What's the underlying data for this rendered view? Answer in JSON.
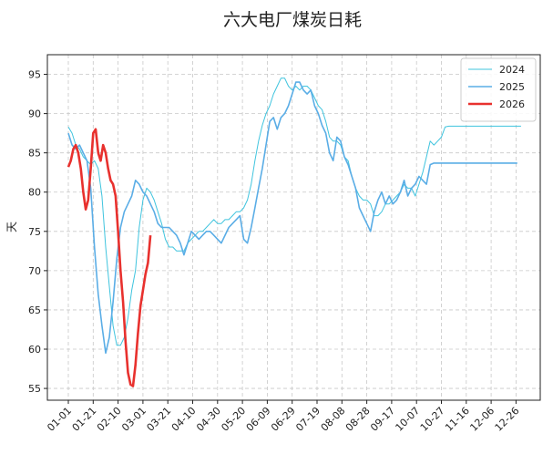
{
  "chart_data": {
    "type": "line",
    "title": "六大电厂煤炭日耗",
    "xlabel": "",
    "ylabel": "天",
    "x_ticks": [
      "01-01",
      "01-21",
      "02-10",
      "03-01",
      "03-21",
      "04-10",
      "04-30",
      "05-20",
      "06-09",
      "06-29",
      "07-19",
      "08-08",
      "08-28",
      "09-17",
      "10-07",
      "10-27",
      "11-16",
      "12-06",
      "12-26"
    ],
    "ylim": [
      53.5,
      97.5
    ],
    "y_ticks": [
      55,
      60,
      65,
      70,
      75,
      80,
      85,
      90,
      95
    ],
    "grid": true,
    "legend_position": "top-right",
    "series": [
      {
        "name": "2024",
        "color": "#3fc4de",
        "x": [
          0,
          3,
          6,
          9,
          12,
          15,
          18,
          21,
          24,
          27,
          30,
          33,
          36,
          39,
          42,
          45,
          48,
          51,
          54,
          57,
          60,
          63,
          66,
          69,
          72,
          75,
          78,
          81,
          84,
          87,
          90,
          93,
          96,
          99,
          102,
          105,
          108,
          111,
          114,
          117,
          120,
          123,
          126,
          129,
          132,
          135,
          138,
          141,
          144,
          147,
          150,
          153,
          156,
          159,
          162,
          165,
          168,
          171,
          174,
          177,
          180,
          183,
          186,
          189,
          192,
          195,
          198,
          201,
          204,
          207,
          210,
          213,
          216,
          219,
          222,
          225,
          228,
          231,
          234,
          237,
          240,
          243,
          246,
          249,
          252,
          255,
          258,
          261,
          264,
          267,
          270,
          273,
          276,
          279,
          282,
          285,
          288,
          291,
          294,
          297,
          300,
          303,
          306,
          309,
          312,
          315,
          318,
          321,
          324,
          327,
          330,
          333,
          336,
          339,
          342,
          345,
          348,
          351,
          354,
          357,
          360,
          364
        ],
        "values": [
          88.3,
          87.5,
          86.0,
          85.5,
          84.5,
          84.0,
          83.5,
          84.0,
          83.0,
          79.5,
          73.0,
          68.0,
          63.0,
          60.5,
          60.5,
          61.5,
          64.0,
          67.5,
          70.0,
          75.5,
          79.0,
          80.5,
          80.0,
          79.0,
          77.5,
          76.0,
          74.0,
          73.0,
          73.0,
          72.5,
          72.5,
          72.5,
          73.5,
          74.0,
          74.5,
          75.0,
          75.0,
          75.5,
          76.0,
          76.5,
          76.0,
          76.0,
          76.5,
          76.5,
          77.0,
          77.5,
          77.5,
          78.0,
          79.0,
          81.0,
          84.0,
          86.5,
          88.5,
          90.0,
          91.0,
          92.5,
          93.5,
          94.5,
          94.5,
          93.5,
          93.0,
          93.5,
          93.0,
          93.5,
          93.5,
          93.0,
          92.0,
          91.0,
          90.5,
          89.0,
          87.0,
          86.5,
          86.5,
          86.0,
          84.5,
          84.0,
          82.0,
          80.5,
          79.5,
          79.0,
          79.0,
          78.5,
          77.0,
          77.0,
          77.5,
          78.5,
          78.5,
          79.0,
          79.5,
          80.0,
          81.0,
          80.5,
          80.5,
          79.5,
          81.0,
          82.5,
          84.5,
          86.5,
          86.0,
          86.5,
          87.0,
          88.3,
          88.4,
          88.4,
          88.4,
          88.4,
          88.4,
          88.4,
          88.4,
          88.4,
          88.4,
          88.4,
          88.4,
          88.4,
          88.4,
          88.4,
          88.4,
          88.4,
          88.4,
          88.4,
          88.4,
          88.4
        ]
      },
      {
        "name": "2025",
        "color": "#5aade6",
        "x": [
          0,
          3,
          6,
          9,
          12,
          15,
          18,
          21,
          24,
          27,
          30,
          33,
          36,
          39,
          42,
          45,
          48,
          51,
          54,
          57,
          60,
          63,
          66,
          69,
          72,
          75,
          78,
          81,
          84,
          87,
          90,
          93,
          96,
          99,
          102,
          105,
          108,
          111,
          114,
          117,
          120,
          123,
          126,
          129,
          132,
          135,
          138,
          141,
          144,
          147,
          150,
          153,
          156,
          159,
          162,
          165,
          168,
          171,
          174,
          177,
          180,
          183,
          186,
          189,
          192,
          195,
          198,
          201,
          204,
          207,
          210,
          213,
          216,
          219,
          222,
          225,
          228,
          231,
          234,
          237,
          240,
          243,
          246,
          249,
          252,
          255,
          258,
          261,
          264,
          267,
          270,
          273,
          276,
          279,
          282,
          285,
          288,
          291,
          294,
          297,
          300,
          303,
          306,
          309,
          312,
          315,
          318,
          321,
          324,
          327,
          330,
          333,
          336,
          339,
          342,
          345,
          348,
          351,
          354,
          357,
          361
        ],
        "values": [
          87.5,
          86.0,
          85.5,
          86.0,
          85.0,
          84.0,
          80.5,
          73.0,
          67.0,
          63.0,
          59.5,
          61.5,
          66.0,
          71.5,
          75.5,
          77.5,
          78.5,
          79.5,
          81.5,
          81.0,
          80.0,
          79.5,
          78.5,
          77.5,
          76.0,
          75.5,
          75.5,
          75.5,
          75.0,
          74.5,
          73.5,
          72.0,
          73.5,
          75.0,
          74.5,
          74.0,
          74.5,
          75.0,
          75.0,
          74.5,
          74.0,
          73.5,
          74.5,
          75.5,
          76.0,
          76.5,
          77.0,
          74.0,
          73.5,
          75.5,
          78.0,
          80.5,
          83.0,
          86.0,
          89.0,
          89.5,
          88.0,
          89.5,
          90.0,
          91.0,
          92.5,
          94.0,
          94.0,
          93.0,
          92.5,
          93.0,
          91.0,
          90.0,
          88.5,
          87.5,
          85.0,
          84.0,
          87.0,
          86.5,
          84.5,
          83.5,
          82.0,
          80.5,
          78.0,
          77.0,
          76.0,
          75.0,
          77.5,
          79.0,
          80.0,
          78.5,
          79.5,
          78.5,
          79.0,
          80.0,
          81.5,
          79.5,
          80.5,
          81.0,
          82.0,
          81.5,
          81.0,
          83.5,
          83.7,
          83.7,
          83.7,
          83.7,
          83.7,
          83.7,
          83.7,
          83.7,
          83.7,
          83.7,
          83.7,
          83.7,
          83.7,
          83.7,
          83.7,
          83.7,
          83.7,
          83.7,
          83.7,
          83.7,
          83.7,
          83.7,
          83.7
        ]
      },
      {
        "name": "2026",
        "color": "#e8312e",
        "x": [
          0,
          2,
          4,
          6,
          8,
          10,
          12,
          14,
          16,
          18,
          20,
          22,
          24,
          26,
          28,
          30,
          32,
          34,
          36,
          38,
          40,
          42,
          44,
          46,
          48,
          50,
          52,
          54,
          56,
          58,
          60,
          62,
          64,
          66
        ],
        "values": [
          83.2,
          84.0,
          85.5,
          86.0,
          85.0,
          83.0,
          80.0,
          77.8,
          79.0,
          83.0,
          87.5,
          88.0,
          85.0,
          84.0,
          86.0,
          85.0,
          83.0,
          81.5,
          81.0,
          79.5,
          75.0,
          70.0,
          66.0,
          61.0,
          57.0,
          55.5,
          55.3,
          58.0,
          62.0,
          65.5,
          67.5,
          69.5,
          71.0,
          74.5
        ]
      }
    ]
  }
}
